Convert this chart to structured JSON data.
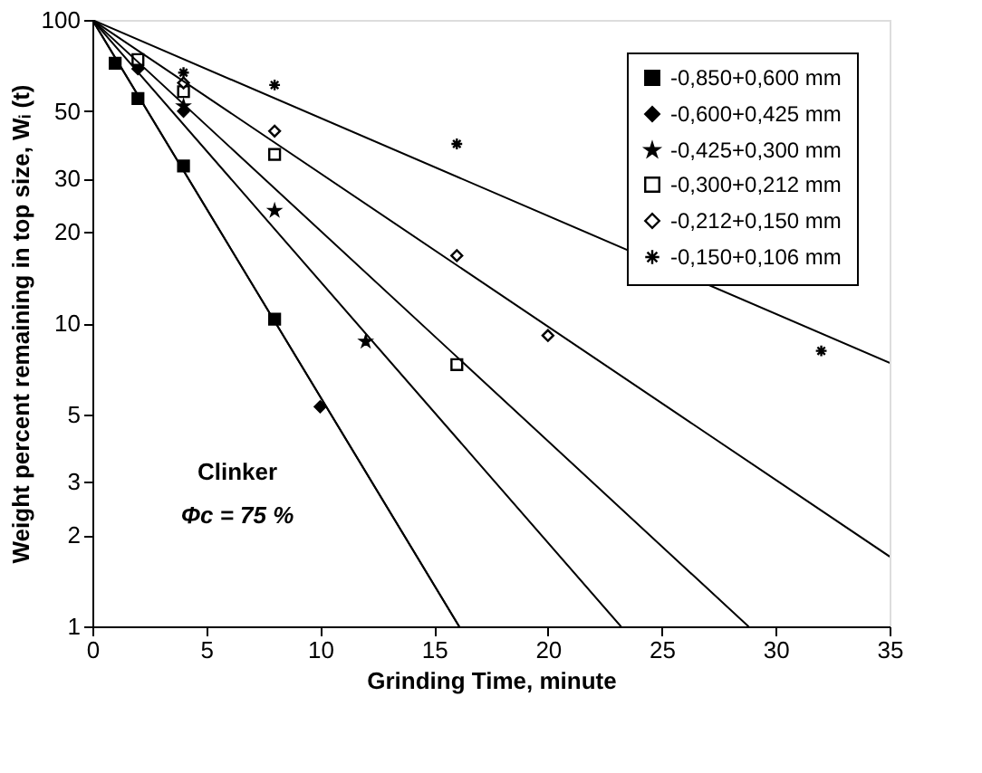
{
  "chart_data": {
    "type": "scatter",
    "xlabel": "Grinding Time, minute",
    "ylabel": "Weight percent remaining in top size, Wᵢ (t)",
    "log": "y",
    "grid": false,
    "legend": "top right",
    "xlim": [
      0,
      35
    ],
    "xticks": [
      0,
      5,
      10,
      15,
      20,
      25,
      30,
      35
    ],
    "ylim": [
      1,
      100
    ],
    "yticks": [
      1,
      2,
      3,
      5,
      10,
      20,
      30,
      50,
      100
    ],
    "annotations": [
      "Clinker",
      "Φc = 75 %"
    ],
    "series": [
      {
        "name": "-0,850+0,600 mm",
        "color": "#000000",
        "marker": "square",
        "x": [
          1,
          2,
          4,
          8
        ],
        "values": [
          72,
          55,
          33,
          10.3
        ]
      },
      {
        "name": "-0,600+0,425 mm",
        "color": "#000000",
        "marker": "diamond",
        "x": [
          2,
          4,
          10
        ],
        "values": [
          69,
          50,
          5.3
        ]
      },
      {
        "name": "-0,425+0,300 mm",
        "color": "#000000",
        "marker": "star",
        "x": [
          4,
          8,
          12
        ],
        "values": [
          52,
          23.5,
          8.7
        ]
      },
      {
        "name": "-0,300+0,212 mm",
        "color": "#ffffff",
        "marker": "square",
        "x": [
          2,
          4,
          8,
          16
        ],
        "values": [
          74,
          58,
          36,
          7.3
        ]
      },
      {
        "name": "-0,212+0,150 mm",
        "color": "#ffffff",
        "marker": "diamond",
        "x": [
          4,
          8,
          16,
          20
        ],
        "values": [
          62,
          43,
          16.7,
          9.1
        ]
      },
      {
        "name": "-0,150+0,106 mm",
        "color": "#000000",
        "marker": "cross",
        "x": [
          4,
          8,
          16,
          32
        ],
        "values": [
          67,
          61,
          39,
          8.1
        ]
      },
      {
        "type": "line",
        "color": "#000000",
        "x": [
          0,
          16.1
        ],
        "values": [
          100,
          1
        ]
      },
      {
        "type": "line",
        "color": "#000000",
        "x": [
          0,
          16.1
        ],
        "values": [
          100,
          1
        ]
      },
      {
        "type": "line",
        "color": "#000000",
        "x": [
          0,
          23.2
        ],
        "values": [
          100,
          1
        ]
      },
      {
        "type": "line",
        "color": "#000000",
        "x": [
          0,
          28.8
        ],
        "values": [
          100,
          1
        ]
      },
      {
        "type": "line",
        "color": "#000000",
        "x": [
          0,
          35
        ],
        "values": [
          100,
          1.7
        ]
      },
      {
        "type": "line",
        "color": "#000000",
        "x": [
          0,
          35
        ],
        "values": [
          100,
          7.4
        ]
      }
    ]
  }
}
